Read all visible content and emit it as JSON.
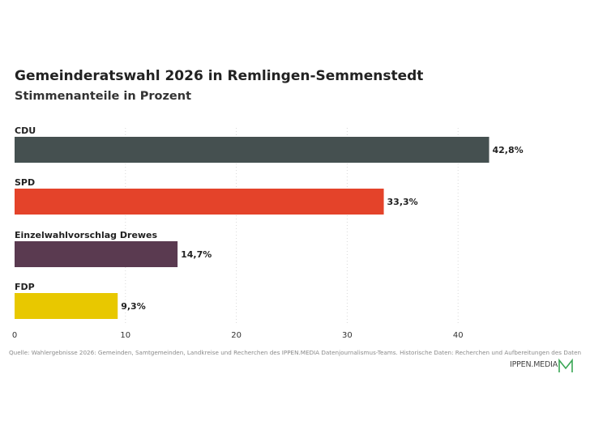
{
  "chart_data": {
    "type": "bar",
    "orientation": "horizontal",
    "title": "Gemeinderatswahl 2026 in Remlingen-Semmenstedt",
    "subtitle": "Stimmenanteile in Prozent",
    "categories": [
      "CDU",
      "SPD",
      "Einzelwahlvorschlag Drewes",
      "FDP"
    ],
    "values": [
      42.8,
      33.3,
      14.7,
      9.3
    ],
    "value_labels": [
      "42,8%",
      "33,3%",
      "14,7%",
      "9,3%"
    ],
    "colors": [
      "#455050",
      "#e4432a",
      "#5a3a50",
      "#e8c800"
    ],
    "xlim": [
      0,
      52
    ],
    "xticks": [
      0,
      10,
      20,
      30,
      40
    ],
    "grid": "vertical-dotted",
    "source": "Quelle: Wahlergebnisse 2026: Gemeinden, Samtgemeinden, Landkreise und Recherchen des IPPEN.MEDIA Datenjournalismus-Teams. Historische Daten: Recherchen und Aufbereitungen des Daten"
  },
  "logo": {
    "text": "IPPEN.MEDIA",
    "color": "#3aa655"
  }
}
